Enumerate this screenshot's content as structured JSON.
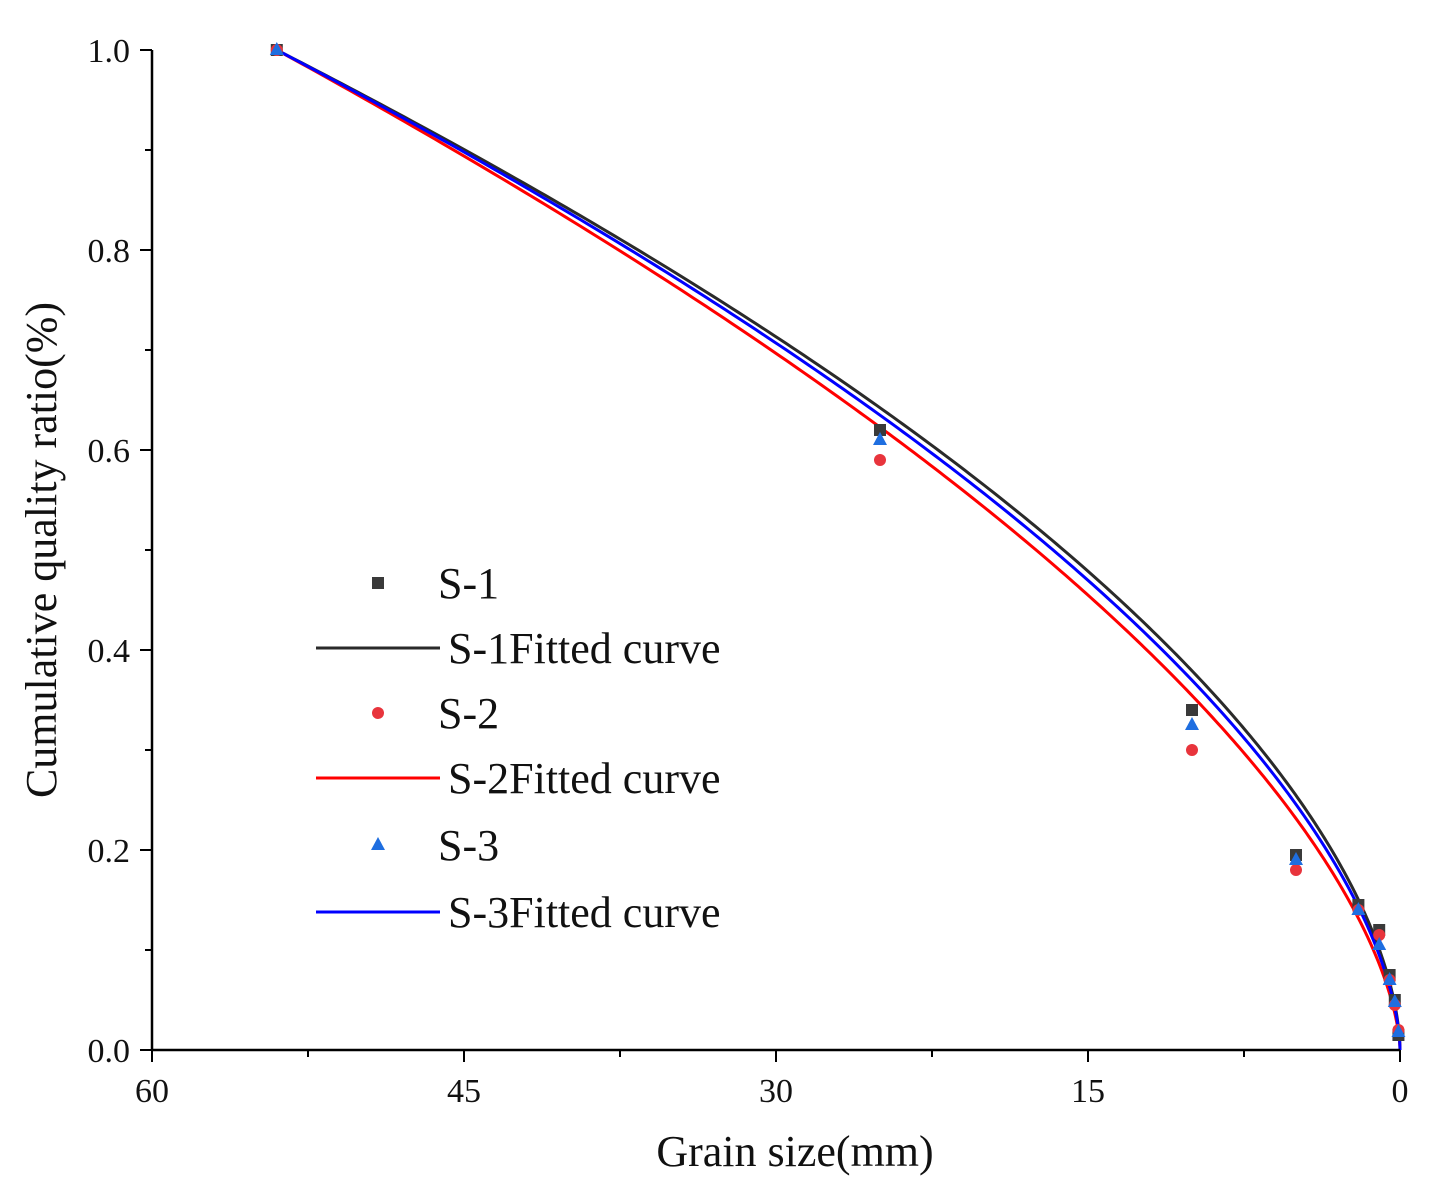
{
  "chart_data": {
    "type": "scatter",
    "title": "",
    "xlabel": "Grain size(mm)",
    "ylabel": "Cumulative quality ratio(%)",
    "xlim": [
      60,
      0
    ],
    "ylim": [
      0,
      1.0
    ],
    "x_ticks": [
      60,
      45,
      30,
      15,
      0
    ],
    "y_ticks": [
      0.0,
      0.2,
      0.4,
      0.6,
      0.8,
      1.0
    ],
    "x_tick_labels": [
      "60",
      "45",
      "30",
      "15",
      "0"
    ],
    "y_tick_labels": [
      "0.0",
      "0.2",
      "0.4",
      "0.6",
      "0.8",
      "1.0"
    ],
    "legend_position": "center-left",
    "series": [
      {
        "name": "S-1",
        "kind": "points",
        "marker": "square",
        "color": "#3a3a3a",
        "x": [
          54,
          25,
          10,
          5,
          2,
          1,
          0.5,
          0.25,
          0.075
        ],
        "y": [
          1.0,
          0.62,
          0.34,
          0.195,
          0.145,
          0.12,
          0.075,
          0.05,
          0.015
        ]
      },
      {
        "name": "S-1Fitted curve",
        "kind": "curve",
        "color": "#2a2a2a",
        "exponent": 0.575
      },
      {
        "name": "S-2",
        "kind": "points",
        "marker": "circle",
        "color": "#e8343c",
        "x": [
          54,
          25,
          10,
          5,
          2,
          1,
          0.5,
          0.25,
          0.075
        ],
        "y": [
          1.0,
          0.59,
          0.3,
          0.18,
          0.14,
          0.115,
          0.07,
          0.045,
          0.02
        ]
      },
      {
        "name": "S-2Fitted curve",
        "kind": "curve",
        "color": "#ff0000",
        "exponent": 0.615
      },
      {
        "name": "S-3",
        "kind": "points",
        "marker": "triangle",
        "color": "#1e6ee0",
        "x": [
          54,
          25,
          10,
          5,
          2,
          1,
          0.5,
          0.25,
          0.075
        ],
        "y": [
          1.0,
          0.61,
          0.325,
          0.19,
          0.14,
          0.105,
          0.07,
          0.048,
          0.018
        ]
      },
      {
        "name": "S-3Fitted curve",
        "kind": "curve",
        "color": "#0000ff",
        "exponent": 0.59
      }
    ]
  }
}
